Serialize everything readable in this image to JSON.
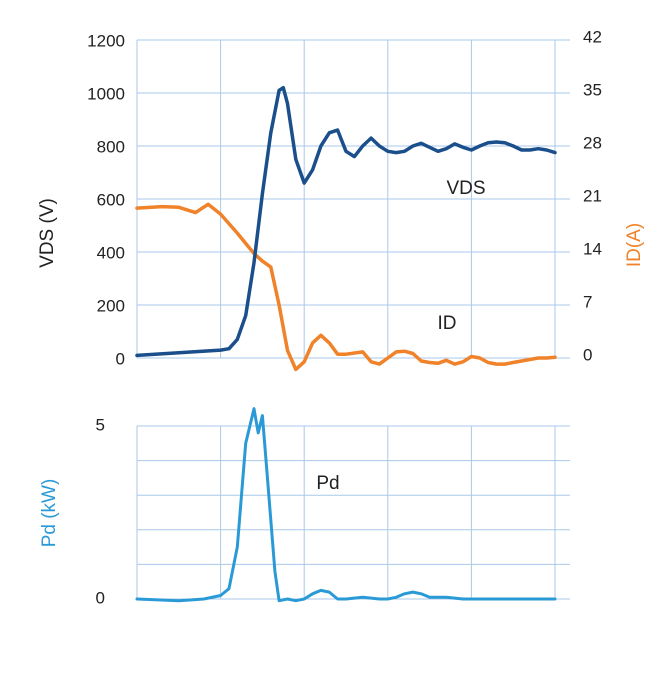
{
  "colors": {
    "vds": "#1a4f8b",
    "id": "#f0822a",
    "pd": "#2a9ad6",
    "grid": "#a9c9e8",
    "text": "#222222"
  },
  "chart_data": [
    {
      "type": "line",
      "title": "",
      "xlabel": "",
      "ylabel": "VDS (V)",
      "y2label": "ID(A)",
      "ylim": [
        0,
        1200
      ],
      "y2lim": [
        0,
        42
      ],
      "yticks": [
        "1200",
        "1000",
        "800",
        "600",
        "400",
        "200",
        "0"
      ],
      "y2ticks": [
        "42",
        "35",
        "28",
        "21",
        "14",
        "7",
        "0"
      ],
      "grid": true,
      "series": [
        {
          "name": "VDS",
          "axis": "left",
          "points": [
            [
              0,
              10
            ],
            [
              10,
              20
            ],
            [
              20,
              30
            ],
            [
              22,
              35
            ],
            [
              24,
              70
            ],
            [
              26,
              160
            ],
            [
              28,
              360
            ],
            [
              30,
              620
            ],
            [
              32,
              850
            ],
            [
              34,
              1010
            ],
            [
              35,
              1020
            ],
            [
              36,
              960
            ],
            [
              38,
              750
            ],
            [
              40,
              660
            ],
            [
              42,
              710
            ],
            [
              44,
              800
            ],
            [
              46,
              850
            ],
            [
              48,
              860
            ],
            [
              50,
              780
            ],
            [
              52,
              760
            ],
            [
              54,
              800
            ],
            [
              56,
              830
            ],
            [
              58,
              800
            ],
            [
              60,
              780
            ],
            [
              62,
              775
            ],
            [
              64,
              780
            ],
            [
              66,
              800
            ],
            [
              68,
              810
            ],
            [
              70,
              795
            ],
            [
              72,
              780
            ],
            [
              74,
              790
            ],
            [
              76,
              808
            ],
            [
              78,
              795
            ],
            [
              80,
              785
            ],
            [
              82,
              800
            ],
            [
              84,
              812
            ],
            [
              86,
              815
            ],
            [
              88,
              812
            ],
            [
              90,
              800
            ],
            [
              92,
              785
            ],
            [
              94,
              785
            ],
            [
              96,
              790
            ],
            [
              98,
              785
            ],
            [
              100,
              775
            ]
          ]
        },
        {
          "name": "ID",
          "axis": "right",
          "points": [
            [
              0,
              19.8
            ],
            [
              6,
              20
            ],
            [
              10,
              19.9
            ],
            [
              14,
              19.2
            ],
            [
              17,
              20.3
            ],
            [
              20,
              19
            ],
            [
              24,
              16.5
            ],
            [
              28,
              13.8
            ],
            [
              30,
              12.8
            ],
            [
              32,
              12
            ],
            [
              34,
              7
            ],
            [
              36,
              1
            ],
            [
              38,
              -1.5
            ],
            [
              40,
              -0.5
            ],
            [
              42,
              2
            ],
            [
              44,
              3
            ],
            [
              46,
              2
            ],
            [
              48,
              0.5
            ],
            [
              50,
              0.5
            ],
            [
              54,
              0.8
            ],
            [
              56,
              -0.5
            ],
            [
              58,
              -0.8
            ],
            [
              60,
              0
            ],
            [
              62,
              0.8
            ],
            [
              64,
              0.9
            ],
            [
              66,
              0.6
            ],
            [
              68,
              -0.4
            ],
            [
              70,
              -0.6
            ],
            [
              72,
              -0.7
            ],
            [
              74,
              -0.3
            ],
            [
              76,
              -0.8
            ],
            [
              78,
              -0.5
            ],
            [
              80,
              0.2
            ],
            [
              82,
              0
            ],
            [
              84,
              -0.6
            ],
            [
              86,
              -0.8
            ],
            [
              88,
              -0.8
            ],
            [
              90,
              -0.6
            ],
            [
              92,
              -0.4
            ],
            [
              94,
              -0.2
            ],
            [
              96,
              0
            ],
            [
              98,
              0
            ],
            [
              100,
              0.1
            ]
          ]
        }
      ]
    },
    {
      "type": "line",
      "title": "",
      "xlabel": "",
      "ylabel": "Pd (kW)",
      "ylim": [
        0,
        5
      ],
      "yticks": [
        "5",
        "0"
      ],
      "grid": true,
      "series": [
        {
          "name": "Pd",
          "axis": "left",
          "points": [
            [
              0,
              0
            ],
            [
              10,
              -0.05
            ],
            [
              16,
              0
            ],
            [
              20,
              0.1
            ],
            [
              22,
              0.3
            ],
            [
              24,
              1.5
            ],
            [
              26,
              4.5
            ],
            [
              28,
              5.5
            ],
            [
              29,
              4.8
            ],
            [
              30,
              5.3
            ],
            [
              31,
              3.8
            ],
            [
              33,
              0.8
            ],
            [
              34,
              -0.05
            ],
            [
              36,
              0
            ],
            [
              38,
              -0.05
            ],
            [
              40,
              0
            ],
            [
              42,
              0.15
            ],
            [
              44,
              0.25
            ],
            [
              46,
              0.2
            ],
            [
              48,
              0
            ],
            [
              50,
              0
            ],
            [
              54,
              0.05
            ],
            [
              58,
              0
            ],
            [
              60,
              0
            ],
            [
              62,
              0.05
            ],
            [
              64,
              0.15
            ],
            [
              66,
              0.2
            ],
            [
              68,
              0.15
            ],
            [
              70,
              0.05
            ],
            [
              74,
              0.05
            ],
            [
              78,
              0
            ],
            [
              82,
              0
            ],
            [
              86,
              0
            ],
            [
              90,
              0
            ],
            [
              94,
              0
            ],
            [
              98,
              0
            ],
            [
              100,
              0
            ]
          ]
        }
      ]
    }
  ],
  "annotations": {
    "vds": "VDS",
    "id": "ID",
    "pd": "Pd"
  }
}
